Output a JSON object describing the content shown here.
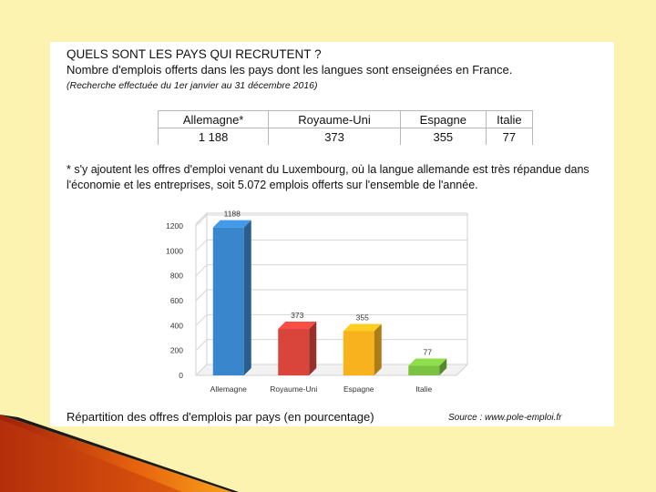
{
  "header": {
    "title": "QUELS SONT LES PAYS QUI RECRUTENT ?",
    "subtitle": "Nombre d'emplois offerts dans les pays dont les langues sont enseignées en France.",
    "period": "(Recherche effectuée du 1er janvier au 31 décembre 2016)"
  },
  "table": {
    "headers": [
      "Allemagne*",
      "Royaume-Uni",
      "Espagne",
      "Italie"
    ],
    "values": [
      "1 188",
      "373",
      "355",
      "77"
    ]
  },
  "note": "* s'y ajoutent les offres d'emploi venant du Luxembourg, où la langue allemande est très répandue dans l'économie et les entreprises, soit 5.072 emplois offerts sur l'ensemble de l'année.",
  "chart_data": {
    "type": "bar",
    "categories": [
      "Allemagne",
      "Royaume-Uni",
      "Espagne",
      "Italie"
    ],
    "values": [
      1188,
      373,
      355,
      77
    ],
    "data_labels": [
      "1188",
      "373",
      "355",
      "77"
    ],
    "yticks": [
      0,
      200,
      400,
      600,
      800,
      1000,
      1200
    ],
    "ylim": [
      0,
      1200
    ],
    "colors": [
      "#3a86cc",
      "#d9453b",
      "#f7b21e",
      "#7cc242"
    ],
    "grid": true
  },
  "footer": {
    "caption": "Répartition des offres d'emplois par pays (en pourcentage)",
    "source": "Source : www.pole-emploi.fr"
  }
}
